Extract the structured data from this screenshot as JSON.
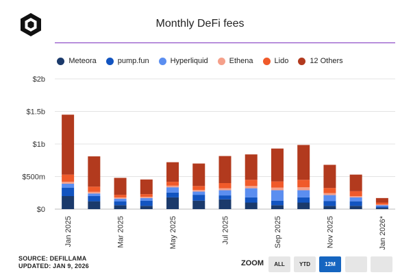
{
  "header": {
    "title": "Monthly DeFi fees"
  },
  "footer": {
    "source": "SOURCE: DEFILLAMA",
    "updated": "UPDATED: JAN 9, 2026"
  },
  "zoom": {
    "label": "ZOOM",
    "buttons": [
      {
        "label": "ALL",
        "active": false
      },
      {
        "label": "YTD",
        "active": false
      },
      {
        "label": "12M",
        "active": true
      },
      {
        "label": "",
        "active": false
      },
      {
        "label": "",
        "active": false
      }
    ]
  },
  "chart_data": {
    "type": "bar",
    "stacked": true,
    "categories": [
      "Jan 2025",
      "Feb 2025",
      "Mar 2025",
      "Apr 2025",
      "May 2025",
      "Jun 2025",
      "Jul 2025",
      "Aug 2025",
      "Sep 2025",
      "Oct 2025",
      "Nov 2025",
      "Dec 2025",
      "Jan 2026*"
    ],
    "x_tick_labels": [
      "Jan 2025",
      "Mar 2025",
      "May 2025",
      "Jul 2025",
      "Sep 2025",
      "Nov 2025",
      "Jan 2026*"
    ],
    "y_ticks": [
      "$0",
      "$500m",
      "$1b",
      "$1.5b",
      "$2b"
    ],
    "ylim": [
      0,
      2000
    ],
    "unit": "$m",
    "grid": true,
    "legend_position": "top",
    "series": [
      {
        "name": "Meteora",
        "color": "#1b3a6b",
        "values": [
          200,
          120,
          60,
          50,
          180,
          130,
          150,
          100,
          60,
          100,
          50,
          50,
          20
        ]
      },
      {
        "name": "pump.fun",
        "color": "#1254c0",
        "values": [
          130,
          80,
          60,
          80,
          75,
          90,
          60,
          80,
          70,
          80,
          75,
          70,
          20
        ]
      },
      {
        "name": "Hyperliquid",
        "color": "#5b8ef0",
        "values": [
          60,
          40,
          40,
          40,
          80,
          50,
          80,
          140,
          160,
          110,
          90,
          60,
          20
        ]
      },
      {
        "name": "Ethena",
        "color": "#f5a08a",
        "values": [
          30,
          25,
          20,
          20,
          25,
          25,
          30,
          35,
          40,
          45,
          30,
          20,
          10
        ]
      },
      {
        "name": "Lido",
        "color": "#f05a2a",
        "values": [
          110,
          80,
          40,
          40,
          60,
          60,
          80,
          95,
          95,
          115,
          80,
          75,
          30
        ]
      },
      {
        "name": "12 Others",
        "color": "#b23a1e",
        "values": [
          920,
          465,
          260,
          225,
          300,
          345,
          415,
          390,
          505,
          535,
          355,
          255,
          70
        ]
      }
    ]
  }
}
